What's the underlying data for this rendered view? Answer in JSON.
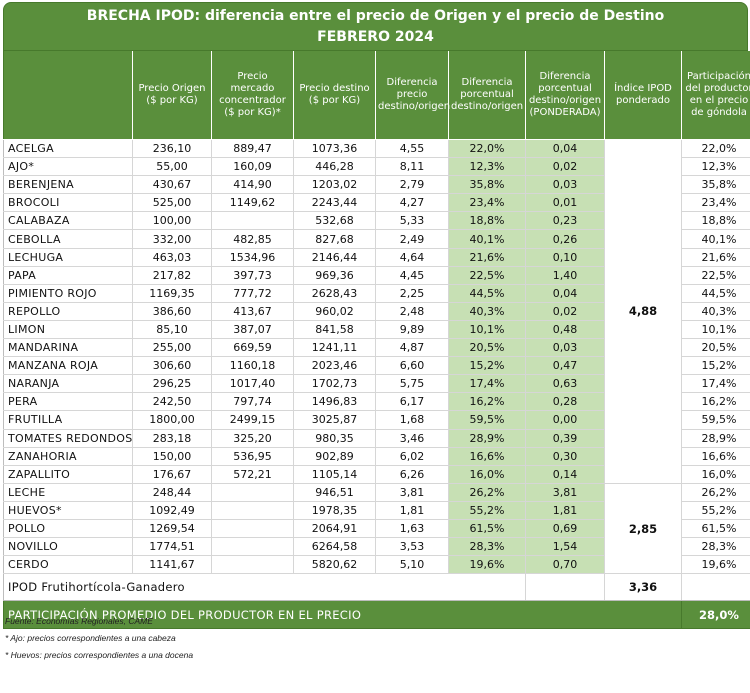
{
  "title_line1": "BRECHA IPOD: diferencia entre el precio de Origen y el precio de Destino",
  "title_line2": "FEBRERO 2024",
  "headers": [
    "",
    "Precio Origen ($ por KG)",
    "Precio mercado concentrador ($ por KG)*",
    "Precio destino ($ por KG)",
    "Diferencia precio destino/origen",
    "Diferencia porcentual destino/origen",
    "Diferencia porcentual destino/origen (PONDERADA)",
    "Índice IPOD ponderado",
    "Participación del productor en el precio de góndola"
  ],
  "group1_index": "4,88",
  "group2_index": "2,85",
  "rows_group1": [
    {
      "name": "ACELGA",
      "origen": "236,10",
      "mercado": "889,47",
      "destino": "1073,36",
      "dif": "4,55",
      "difpct": "22,0%",
      "pond": "0,04",
      "part": "22,0%"
    },
    {
      "name": "AJO*",
      "origen": "55,00",
      "mercado": "160,09",
      "destino": "446,28",
      "dif": "8,11",
      "difpct": "12,3%",
      "pond": "0,02",
      "part": "12,3%"
    },
    {
      "name": "BERENJENA",
      "origen": "430,67",
      "mercado": "414,90",
      "destino": "1203,02",
      "dif": "2,79",
      "difpct": "35,8%",
      "pond": "0,03",
      "part": "35,8%"
    },
    {
      "name": "BROCOLI",
      "origen": "525,00",
      "mercado": "1149,62",
      "destino": "2243,44",
      "dif": "4,27",
      "difpct": "23,4%",
      "pond": "0,01",
      "part": "23,4%"
    },
    {
      "name": "CALABAZA",
      "origen": "100,00",
      "mercado": "",
      "destino": "532,68",
      "dif": "5,33",
      "difpct": "18,8%",
      "pond": "0,23",
      "part": "18,8%"
    },
    {
      "name": "CEBOLLA",
      "origen": "332,00",
      "mercado": "482,85",
      "destino": "827,68",
      "dif": "2,49",
      "difpct": "40,1%",
      "pond": "0,26",
      "part": "40,1%"
    },
    {
      "name": "LECHUGA",
      "origen": "463,03",
      "mercado": "1534,96",
      "destino": "2146,44",
      "dif": "4,64",
      "difpct": "21,6%",
      "pond": "0,10",
      "part": "21,6%"
    },
    {
      "name": "PAPA",
      "origen": "217,82",
      "mercado": "397,73",
      "destino": "969,36",
      "dif": "4,45",
      "difpct": "22,5%",
      "pond": "1,40",
      "part": "22,5%"
    },
    {
      "name": "PIMIENTO ROJO",
      "origen": "1169,35",
      "mercado": "777,72",
      "destino": "2628,43",
      "dif": "2,25",
      "difpct": "44,5%",
      "pond": "0,04",
      "part": "44,5%"
    },
    {
      "name": "REPOLLO",
      "origen": "386,60",
      "mercado": "413,67",
      "destino": "960,02",
      "dif": "2,48",
      "difpct": "40,3%",
      "pond": "0,02",
      "part": "40,3%"
    },
    {
      "name": "LIMON",
      "origen": "85,10",
      "mercado": "387,07",
      "destino": "841,58",
      "dif": "9,89",
      "difpct": "10,1%",
      "pond": "0,48",
      "part": "10,1%"
    },
    {
      "name": "MANDARINA",
      "origen": "255,00",
      "mercado": "669,59",
      "destino": "1241,11",
      "dif": "4,87",
      "difpct": "20,5%",
      "pond": "0,03",
      "part": "20,5%"
    },
    {
      "name": "MANZANA ROJA",
      "origen": "306,60",
      "mercado": "1160,18",
      "destino": "2023,46",
      "dif": "6,60",
      "difpct": "15,2%",
      "pond": "0,47",
      "part": "15,2%"
    },
    {
      "name": "NARANJA",
      "origen": "296,25",
      "mercado": "1017,40",
      "destino": "1702,73",
      "dif": "5,75",
      "difpct": "17,4%",
      "pond": "0,63",
      "part": "17,4%"
    },
    {
      "name": "PERA",
      "origen": "242,50",
      "mercado": "797,74",
      "destino": "1496,83",
      "dif": "6,17",
      "difpct": "16,2%",
      "pond": "0,28",
      "part": "16,2%"
    },
    {
      "name": "FRUTILLA",
      "origen": "1800,00",
      "mercado": "2499,15",
      "destino": "3025,87",
      "dif": "1,68",
      "difpct": "59,5%",
      "pond": "0,00",
      "part": "59,5%"
    },
    {
      "name": "TOMATES REDONDOS",
      "origen": "283,18",
      "mercado": "325,20",
      "destino": "980,35",
      "dif": "3,46",
      "difpct": "28,9%",
      "pond": "0,39",
      "part": "28,9%"
    },
    {
      "name": "ZANAHORIA",
      "origen": "150,00",
      "mercado": "536,95",
      "destino": "902,89",
      "dif": "6,02",
      "difpct": "16,6%",
      "pond": "0,30",
      "part": "16,6%"
    },
    {
      "name": "ZAPALLITO",
      "origen": "176,67",
      "mercado": "572,21",
      "destino": "1105,14",
      "dif": "6,26",
      "difpct": "16,0%",
      "pond": "0,14",
      "part": "16,0%"
    }
  ],
  "rows_group2": [
    {
      "name": "LECHE",
      "origen": "248,44",
      "mercado": "",
      "destino": "946,51",
      "dif": "3,81",
      "difpct": "26,2%",
      "pond": "3,81",
      "part": "26,2%"
    },
    {
      "name": "HUEVOS*",
      "origen": "1092,49",
      "mercado": "",
      "destino": "1978,35",
      "dif": "1,81",
      "difpct": "55,2%",
      "pond": "1,81",
      "part": "55,2%"
    },
    {
      "name": "POLLO",
      "origen": "1269,54",
      "mercado": "",
      "destino": "2064,91",
      "dif": "1,63",
      "difpct": "61,5%",
      "pond": "0,69",
      "part": "61,5%"
    },
    {
      "name": "NOVILLO",
      "origen": "1774,51",
      "mercado": "",
      "destino": "6264,58",
      "dif": "3,53",
      "difpct": "28,3%",
      "pond": "1,54",
      "part": "28,3%"
    },
    {
      "name": "CERDO",
      "origen": "1141,67",
      "mercado": "",
      "destino": "5820,62",
      "dif": "5,10",
      "difpct": "19,6%",
      "pond": "0,70",
      "part": "19,6%"
    }
  ],
  "total_label": "IPOD Frutihortícola-Ganadero",
  "total_value": "3,36",
  "promedio_label": "PARTICIPACIÓN PROMEDIO DEL PRODUCTOR EN EL PRECIO",
  "promedio_value": "28,0%",
  "notes": [
    "Fuente: Economías Regionales, CAME",
    "* Ajo: precios correspondientes a una cabeza",
    "* Huevos: precios correspondientes a una docena"
  ],
  "colors": {
    "header_green": "#5a8f3c",
    "light_green": "#c7e0b4"
  }
}
